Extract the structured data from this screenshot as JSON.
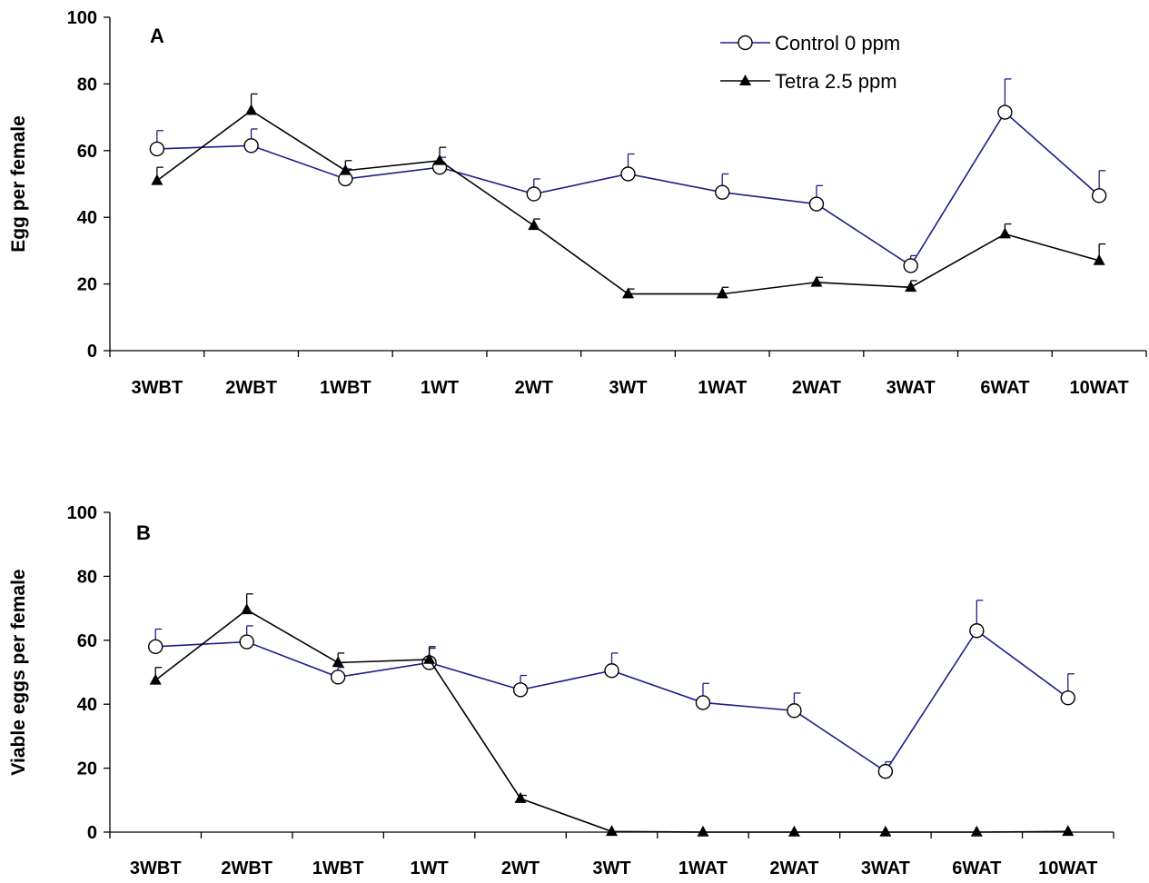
{
  "chart_data": [
    {
      "type": "line",
      "panel_label": "A",
      "ylabel": "Egg per female",
      "xlabel": "",
      "ylim": [
        0,
        100
      ],
      "yticks": [
        "0",
        "20",
        "40",
        "60",
        "80",
        "100"
      ],
      "categories": [
        "3WBT",
        "2WBT",
        "1WBT",
        "1WT",
        "2WT",
        "3WT",
        "1WAT",
        "2WAT",
        "3WAT",
        "6WAT",
        "10WAT"
      ],
      "legend_position": "top-right",
      "series": [
        {
          "name": "Control 0 ppm",
          "color": "#1c1c8c",
          "marker": "open-circle",
          "values": [
            60.5,
            61.5,
            51.5,
            55,
            47,
            53,
            47.5,
            44,
            25.5,
            71.5,
            46.5
          ],
          "error_upper": [
            5.5,
            5,
            3,
            3,
            4.5,
            6,
            5.5,
            5.5,
            3,
            10,
            7.5
          ]
        },
        {
          "name": "Tetra 2.5 ppm",
          "color": "#000000",
          "marker": "filled-triangle",
          "values": [
            51,
            72,
            54,
            57,
            37.5,
            17,
            17,
            20.5,
            19,
            35,
            27
          ],
          "error_upper": [
            4,
            5,
            3,
            4,
            2,
            1.5,
            2,
            1.5,
            2,
            3,
            5
          ]
        }
      ]
    },
    {
      "type": "line",
      "panel_label": "B",
      "ylabel": "Viable eggs per female",
      "xlabel": "",
      "ylim": [
        0,
        100
      ],
      "yticks": [
        "0",
        "20",
        "40",
        "60",
        "80",
        "100"
      ],
      "categories": [
        "3WBT",
        "2WBT",
        "1WBT",
        "1WT",
        "2WT",
        "3WT",
        "1WAT",
        "2WAT",
        "3WAT",
        "6WAT",
        "10WAT"
      ],
      "series": [
        {
          "name": "Control 0 ppm",
          "color": "#1c1c8c",
          "marker": "open-circle",
          "values": [
            58,
            59.5,
            48.5,
            53,
            44.5,
            50.5,
            40.5,
            38,
            19,
            63,
            42
          ],
          "error_upper": [
            5.5,
            5,
            3,
            4.5,
            4.5,
            5.5,
            6,
            5.5,
            3,
            9.5,
            7.5
          ]
        },
        {
          "name": "Tetra 2.5 ppm",
          "color": "#000000",
          "marker": "filled-triangle",
          "values": [
            47.5,
            69.5,
            53,
            54,
            10.5,
            0.2,
            0,
            0,
            0,
            0,
            0.2
          ],
          "error_upper": [
            4,
            5,
            3,
            4,
            1,
            0,
            0,
            0,
            0,
            0,
            0
          ]
        }
      ]
    }
  ]
}
